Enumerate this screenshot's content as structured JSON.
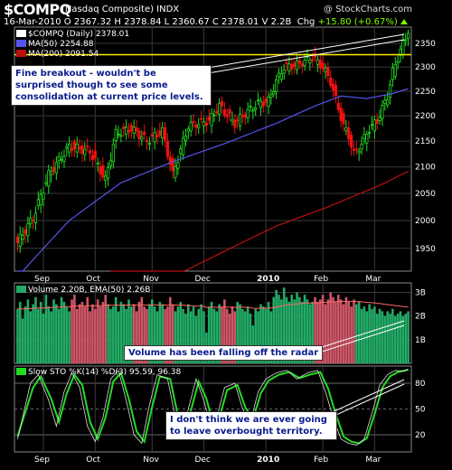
{
  "header": {
    "symbol": "$COMPQ",
    "company": "(Nasdaq Composite) INDX",
    "brand": "@ StockCharts.com",
    "quote": "16-Mar-2010  O 2367.32  H 2378.84  L 2360.67  C 2378.01  V 2.2B",
    "chg_label": "Chg",
    "chg_value": "+15.80 (+0.67%)",
    "chg_arrow": "up-arrow-icon"
  },
  "price_panel": {
    "legend_main": "$COMPQ (Daily) 2378.01",
    "legend_ma50": "MA(50) 2254.88",
    "legend_ma200": "MA(200) 2091.54",
    "colors": {
      "up": "#22dd22",
      "down": "#ee1111",
      "ma50": "#5555ee",
      "ma200": "#bb1111",
      "hline": "#ffee00",
      "grid": "#555555"
    },
    "y_ticks": [
      "1950",
      "2000",
      "2050",
      "2100",
      "2150",
      "2200",
      "2250",
      "2300",
      "2350"
    ],
    "x_ticks": [
      "Sep",
      "Oct",
      "Nov",
      "Dec",
      "2010",
      "Feb",
      "Mar"
    ],
    "annotation": "Fine breakout - wouldn't be surprised though to see some consolidation at current price levels."
  },
  "volume_panel": {
    "legend": "Volume 2.20B, EMA(50) 2.26B",
    "y_ticks": [
      "1B",
      "2B",
      "3B"
    ],
    "colors": {
      "up": "#22aa66",
      "down": "#cc5566",
      "ema": "#ff6666"
    },
    "annotation": "Volume has been falling off the radar"
  },
  "sto_panel": {
    "legend": "Slow STO %K(14) %D(3) 95.59, 96.38",
    "y_ticks": [
      "20",
      "50",
      "80"
    ],
    "x_ticks": [
      "Sep",
      "Oct",
      "Nov",
      "Dec",
      "2010",
      "Feb",
      "Mar"
    ],
    "colors": {
      "k": "#111111",
      "d": "#22dd22",
      "band": "#666666"
    },
    "annotation_line1": "I don't think we are ever going",
    "annotation_line2": "to leave overbought territory."
  },
  "chart_data": [
    {
      "type": "candlestick",
      "title": "$COMPQ (Nasdaq Composite) INDX",
      "ylim": [
        1910,
        2385
      ],
      "y_scale": "log",
      "x": [
        "Sep",
        "Oct",
        "Nov",
        "Dec",
        "2010",
        "Feb",
        "Mar"
      ],
      "horizontal_line": 2326,
      "series": [
        {
          "name": "$COMPQ (Daily) 2378.01",
          "close_waypoints": [
            [
              0,
              1960
            ],
            [
              6,
              2005
            ],
            [
              12,
              2085
            ],
            [
              20,
              2140
            ],
            [
              28,
              2130
            ],
            [
              34,
              2075
            ],
            [
              38,
              2165
            ],
            [
              44,
              2175
            ],
            [
              50,
              2150
            ],
            [
              56,
              2170
            ],
            [
              60,
              2085
            ],
            [
              66,
              2180
            ],
            [
              74,
              2190
            ],
            [
              78,
              2220
            ],
            [
              84,
              2185
            ],
            [
              88,
              2205
            ],
            [
              93,
              2225
            ],
            [
              97,
              2230
            ],
            [
              100,
              2270
            ],
            [
              103,
              2300
            ],
            [
              108,
              2305
            ],
            [
              114,
              2320
            ],
            [
              118,
              2300
            ],
            [
              121,
              2270
            ],
            [
              124,
              2215
            ],
            [
              126,
              2180
            ],
            [
              128,
              2160
            ],
            [
              130,
              2125
            ],
            [
              133,
              2145
            ],
            [
              136,
              2175
            ],
            [
              139,
              2190
            ],
            [
              143,
              2240
            ],
            [
              145,
              2290
            ],
            [
              148,
              2335
            ],
            [
              150,
              2362
            ],
            [
              151,
              2378
            ]
          ]
        },
        {
          "name": "MA(50) 2254.88",
          "waypoints": [
            [
              0,
              1900
            ],
            [
              20,
              2000
            ],
            [
              40,
              2070
            ],
            [
              60,
              2110
            ],
            [
              80,
              2145
            ],
            [
              100,
              2185
            ],
            [
              115,
              2220
            ],
            [
              125,
              2240
            ],
            [
              135,
              2235
            ],
            [
              145,
              2245
            ],
            [
              151,
              2255
            ]
          ]
        },
        {
          "name": "MA(200) 2091.54",
          "waypoints": [
            [
              36,
              1860
            ],
            [
              60,
              1900
            ],
            [
              80,
              1945
            ],
            [
              100,
              1990
            ],
            [
              120,
              2025
            ],
            [
              140,
              2065
            ],
            [
              151,
              2092
            ]
          ]
        }
      ]
    },
    {
      "type": "bar",
      "title": "Volume 2.20B, EMA(50) 2.26B",
      "ylim": [
        0,
        3.4
      ],
      "y_unit": "B",
      "ema_value": 2.26,
      "values": [
        2.3,
        2.6,
        1.9,
        2.4,
        2.7,
        2.2,
        2.5,
        2.8,
        2.3,
        2.6,
        2.1,
        2.9,
        2.4,
        2.2,
        2.7,
        2.5,
        2.3,
        2.8,
        2.6,
        2.4,
        2.2,
        2.7,
        2.9,
        2.3,
        2.5,
        2.6,
        2.4,
        2.8,
        2.2,
        2.5,
        2.3,
        2.7,
        2.4,
        2.6,
        2.9,
        2.5,
        2.3,
        2.4,
        2.8,
        2.2,
        2.6,
        2.5,
        2.3,
        2.7,
        2.4,
        2.5,
        2.2,
        2.6,
        2.8,
        2.4,
        2.3,
        2.5,
        2.7,
        2.4,
        2.2,
        2.6,
        2.5,
        2.3,
        2.4,
        2.8,
        2.5,
        2.2,
        2.4,
        2.6,
        2.3,
        2.1,
        2.5,
        2.2,
        2.4,
        2.0,
        2.3,
        2.5,
        2.2,
        1.3,
        2.4,
        2.6,
        2.3,
        2.2,
        2.5,
        2.4,
        2.7,
        2.3,
        2.1,
        2.4,
        2.2,
        2.6,
        2.5,
        2.3,
        2.2,
        2.4,
        2.1,
        1.6,
        2.3,
        2.2,
        2.5,
        2.4,
        2.3,
        2.6,
        2.2,
        2.8,
        3.1,
        2.9,
        2.7,
        3.2,
        2.8,
        2.6,
        2.9,
        2.7,
        3.0,
        2.8,
        2.6,
        2.9,
        2.7,
        2.5,
        2.6,
        2.8,
        2.6,
        2.7,
        2.9,
        2.5,
        2.7,
        3.0,
        2.8,
        2.6,
        2.9,
        2.7,
        2.5,
        2.8,
        2.6,
        2.4,
        2.7,
        2.5,
        2.6,
        2.3,
        2.4,
        2.2,
        2.5,
        2.3,
        2.4,
        2.1,
        2.3,
        2.2,
        2.0,
        2.2,
        2.1,
        2.3,
        2.0,
        2.1,
        2.2,
        2.0,
        2.1,
        2.2
      ]
    },
    {
      "type": "line",
      "title": "Slow STO %K(14) %D(3) 95.59, 96.38",
      "ylim": [
        0,
        100
      ],
      "series": [
        {
          "name": "%K(14)",
          "waypoints": [
            [
              0,
              15
            ],
            [
              5,
              80
            ],
            [
              8,
              90
            ],
            [
              12,
              60
            ],
            [
              15,
              30
            ],
            [
              18,
              70
            ],
            [
              21,
              92
            ],
            [
              24,
              75
            ],
            [
              27,
              30
            ],
            [
              30,
              12
            ],
            [
              33,
              40
            ],
            [
              36,
              85
            ],
            [
              39,
              95
            ],
            [
              42,
              60
            ],
            [
              45,
              20
            ],
            [
              48,
              10
            ],
            [
              51,
              55
            ],
            [
              54,
              90
            ],
            [
              58,
              85
            ],
            [
              61,
              40
            ],
            [
              63,
              15
            ],
            [
              66,
              50
            ],
            [
              69,
              85
            ],
            [
              72,
              60
            ],
            [
              75,
              25
            ],
            [
              77,
              40
            ],
            [
              80,
              75
            ],
            [
              84,
              80
            ],
            [
              87,
              50
            ],
            [
              90,
              35
            ],
            [
              93,
              70
            ],
            [
              96,
              85
            ],
            [
              100,
              92
            ],
            [
              104,
              95
            ],
            [
              108,
              85
            ],
            [
              112,
              92
            ],
            [
              116,
              95
            ],
            [
              119,
              70
            ],
            [
              122,
              40
            ],
            [
              125,
              15
            ],
            [
              128,
              10
            ],
            [
              131,
              8
            ],
            [
              134,
              15
            ],
            [
              137,
              45
            ],
            [
              140,
              78
            ],
            [
              143,
              90
            ],
            [
              146,
              95
            ],
            [
              149,
              94
            ],
            [
              151,
              96
            ]
          ]
        },
        {
          "name": "%D(3)",
          "waypoints": [
            [
              0,
              18
            ],
            [
              6,
              75
            ],
            [
              9,
              88
            ],
            [
              13,
              62
            ],
            [
              16,
              35
            ],
            [
              19,
              68
            ],
            [
              22,
              90
            ],
            [
              25,
              78
            ],
            [
              28,
              35
            ],
            [
              31,
              15
            ],
            [
              34,
              40
            ],
            [
              37,
              82
            ],
            [
              40,
              92
            ],
            [
              43,
              62
            ],
            [
              46,
              24
            ],
            [
              49,
              12
            ],
            [
              52,
              52
            ],
            [
              55,
              88
            ],
            [
              59,
              85
            ],
            [
              62,
              42
            ],
            [
              64,
              18
            ],
            [
              67,
              48
            ],
            [
              70,
              82
            ],
            [
              73,
              62
            ],
            [
              76,
              28
            ],
            [
              78,
              40
            ],
            [
              81,
              72
            ],
            [
              85,
              78
            ],
            [
              88,
              52
            ],
            [
              91,
              38
            ],
            [
              94,
              68
            ],
            [
              97,
              83
            ],
            [
              101,
              90
            ],
            [
              105,
              93
            ],
            [
              109,
              86
            ],
            [
              113,
              90
            ],
            [
              117,
              93
            ],
            [
              120,
              74
            ],
            [
              123,
              44
            ],
            [
              126,
              18
            ],
            [
              129,
              12
            ],
            [
              132,
              10
            ],
            [
              135,
              16
            ],
            [
              138,
              44
            ],
            [
              141,
              75
            ],
            [
              144,
              88
            ],
            [
              147,
              93
            ],
            [
              150,
              95
            ],
            [
              151,
              96
            ]
          ]
        }
      ]
    }
  ]
}
